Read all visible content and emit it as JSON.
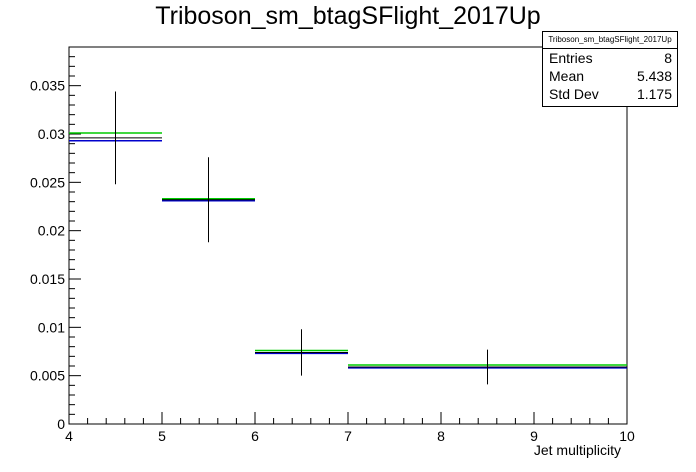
{
  "title": "Triboson_sm_btagSFlight_2017Up",
  "stats": {
    "name": "Triboson_sm_btagSFlight_2017Up",
    "entries_label": "Entries",
    "entries_value": "8",
    "mean_label": "Mean",
    "mean_value": "5.438",
    "std_label": "Std Dev",
    "std_value": "1.175"
  },
  "colors": {
    "nominal": "#000000",
    "blue": "#0000cc",
    "green": "#00cc00"
  },
  "chart_data": {
    "type": "histogram",
    "xlabel": "Jet multiplicity",
    "ylabel": "",
    "xlim": [
      4,
      10
    ],
    "ylim": [
      0,
      0.039
    ],
    "x_ticks": [
      "4",
      "5",
      "6",
      "7",
      "8",
      "9",
      "10"
    ],
    "y_ticks": [
      "0",
      "0.005",
      "0.01",
      "0.015",
      "0.02",
      "0.025",
      "0.03",
      "0.035"
    ],
    "bins": [
      {
        "lo": 4,
        "hi": 5,
        "center": 4.5,
        "nominal": 0.0296,
        "err": 0.0048,
        "blue": 0.0293,
        "green": 0.0301
      },
      {
        "lo": 5,
        "hi": 6,
        "center": 5.5,
        "nominal": 0.0232,
        "err": 0.0044,
        "blue": 0.0231,
        "green": 0.0233
      },
      {
        "lo": 6,
        "hi": 7,
        "center": 6.5,
        "nominal": 0.0074,
        "err": 0.0024,
        "blue": 0.0073,
        "green": 0.0076
      },
      {
        "lo": 7,
        "hi": 10,
        "center": 8.5,
        "nominal": 0.0059,
        "err": 0.0018,
        "blue": 0.0058,
        "green": 0.0061
      }
    ]
  }
}
